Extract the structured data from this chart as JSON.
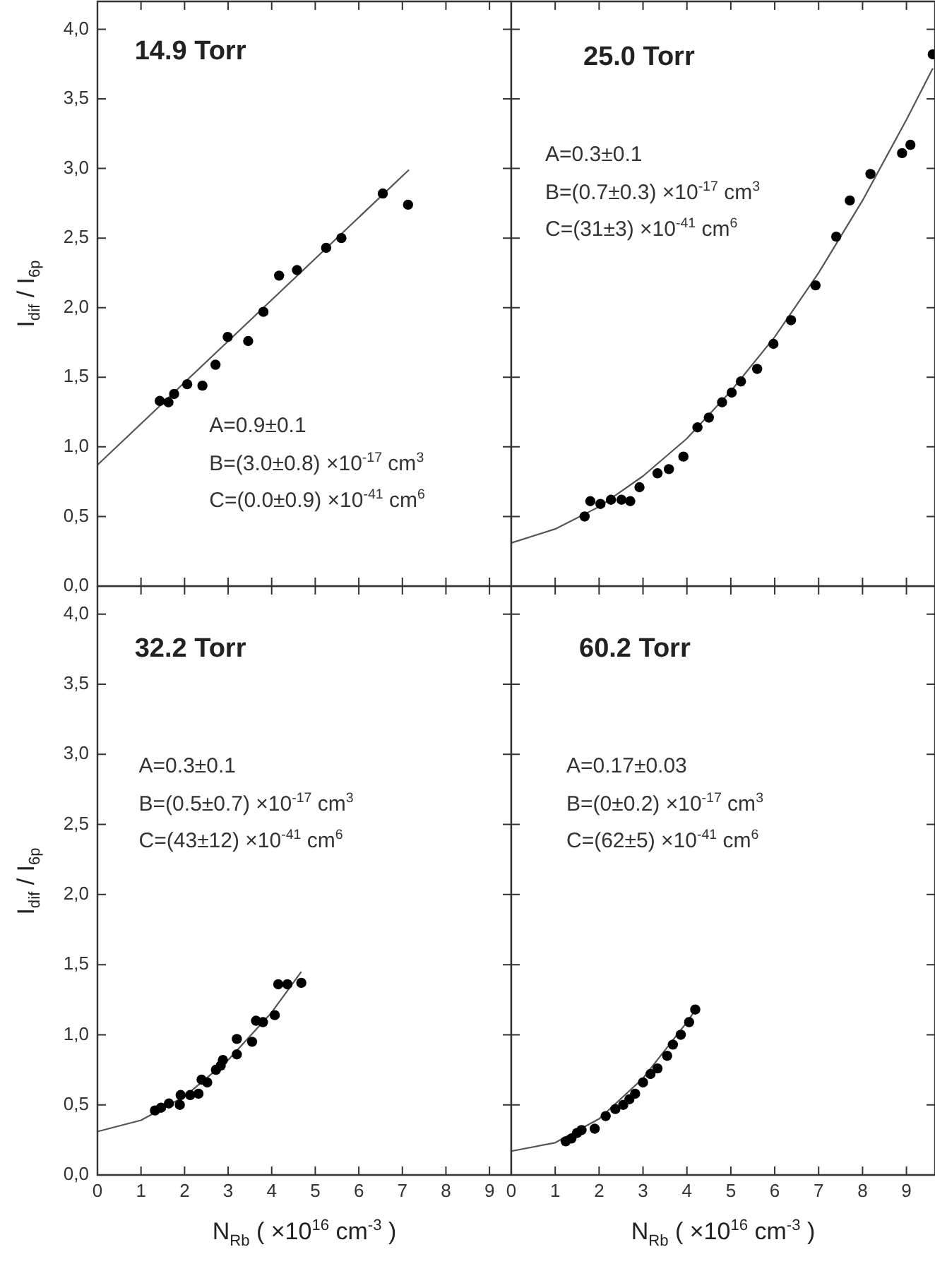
{
  "chart_data": [
    {
      "type": "scatter",
      "ylabel": "I$_{dif}$ / I$_{6p}$",
      "annotations": [
        "14.9 Torr",
        "A=0.9±0.1",
        "B=(3.0±0.8) ×10$^{-17}$ cm$^{3}$",
        "C=(0.0±0.9) ×10$^{-41}$ cm$^{6}$"
      ],
      "xlim": [
        0,
        9.5
      ],
      "xticks": [
        {
          "value": 0,
          "label": null
        },
        {
          "value": 1,
          "label": null
        },
        {
          "value": 2,
          "label": null
        },
        {
          "value": 3,
          "label": null
        },
        {
          "value": 4,
          "label": null
        },
        {
          "value": 5,
          "label": null
        },
        {
          "value": 6,
          "label": null
        },
        {
          "value": 7,
          "label": null
        },
        {
          "value": 8,
          "label": null
        },
        {
          "value": 9,
          "label": null
        }
      ],
      "ylim": [
        0,
        4.2
      ],
      "yticks": [
        {
          "value": 0,
          "label": "0,0"
        },
        {
          "value": 0.5,
          "label": "0,5"
        },
        {
          "value": 1,
          "label": "1,0"
        },
        {
          "value": 1.5,
          "label": "1,5"
        },
        {
          "value": 2,
          "label": "2,0"
        },
        {
          "value": 2.5,
          "label": "2,5"
        },
        {
          "value": 3,
          "label": "3,0"
        },
        {
          "value": 3.5,
          "label": "3,5"
        },
        {
          "value": 4,
          "label": "4,0"
        }
      ],
      "tick_labels": "y",
      "marker": "circle",
      "series": [
        {
          "type": "scatter",
          "color": "#000000",
          "x": [
            1.43,
            1.63,
            1.76,
            2.06,
            2.41,
            2.71,
            2.99,
            3.46,
            3.81,
            4.17,
            4.58,
            5.25,
            5.6,
            6.55,
            7.13
          ],
          "values": [
            1.33,
            1.32,
            1.38,
            1.45,
            1.44,
            1.59,
            1.79,
            1.76,
            1.97,
            2.23,
            2.27,
            2.43,
            2.5,
            2.82,
            2.74
          ]
        },
        {
          "type": "line",
          "color": "#555555",
          "marker": "none",
          "x": [
            0,
            7.15
          ],
          "values": [
            0.87,
            2.99
          ]
        }
      ]
    },
    {
      "type": "scatter",
      "annotations": [
        "25.0 Torr",
        "A=0.3±0.1",
        "B=(0.7±0.3) ×10$^{-17}$ cm$^{3}$",
        "C=(31±3) ×10$^{-41}$ cm$^{6}$"
      ],
      "xlim": [
        0,
        9.65
      ],
      "xticks": [
        {
          "value": 0,
          "label": null
        },
        {
          "value": 1,
          "label": null
        },
        {
          "value": 2,
          "label": null
        },
        {
          "value": 3,
          "label": null
        },
        {
          "value": 4,
          "label": null
        },
        {
          "value": 5,
          "label": null
        },
        {
          "value": 6,
          "label": null
        },
        {
          "value": 7,
          "label": null
        },
        {
          "value": 8,
          "label": null
        },
        {
          "value": 9,
          "label": null
        }
      ],
      "ylim": [
        0,
        4.2
      ],
      "yticks": [
        {
          "value": 0,
          "label": null
        },
        {
          "value": 0.5,
          "label": null
        },
        {
          "value": 1,
          "label": null
        },
        {
          "value": 1.5,
          "label": null
        },
        {
          "value": 2,
          "label": null
        },
        {
          "value": 2.5,
          "label": null
        },
        {
          "value": 3,
          "label": null
        },
        {
          "value": 3.5,
          "label": null
        },
        {
          "value": 4,
          "label": null
        }
      ],
      "tick_labels": false,
      "marker": "circle",
      "series": [
        {
          "type": "scatter",
          "color": "#000000",
          "x": [
            1.67,
            1.8,
            2.03,
            2.27,
            2.51,
            2.71,
            2.92,
            3.33,
            3.59,
            3.92,
            4.24,
            4.5,
            4.8,
            5.02,
            5.23,
            5.6,
            5.97,
            6.37,
            6.93,
            7.4,
            7.71,
            8.18,
            8.9,
            9.09,
            9.6
          ],
          "values": [
            0.5,
            0.61,
            0.59,
            0.62,
            0.62,
            0.61,
            0.71,
            0.81,
            0.84,
            0.93,
            1.14,
            1.21,
            1.32,
            1.39,
            1.47,
            1.56,
            1.74,
            1.91,
            2.16,
            2.51,
            2.77,
            2.96,
            3.11,
            3.17,
            3.82
          ]
        },
        {
          "type": "line",
          "color": "#555555",
          "marker": "none",
          "x": [
            0,
            1,
            2,
            3,
            4,
            5,
            6,
            7,
            8,
            9,
            9.6
          ],
          "values": [
            0.31,
            0.41,
            0.57,
            0.79,
            1.06,
            1.4,
            1.79,
            2.25,
            2.77,
            3.35,
            3.72
          ]
        }
      ]
    },
    {
      "type": "scatter",
      "ylabel": "I$_{dif}$ / I$_{6p}$",
      "xlabel": "N$_{Rb}$ ( ×10$^{16}$ cm$^{-3}$ )",
      "annotations": [
        "32.2 Torr",
        "A=0.3±0.1",
        "B=(0.5±0.7) ×10$^{-17}$ cm$^{3}$",
        "C=(43±12) ×10$^{-41}$ cm$^{6}$"
      ],
      "xlim": [
        0,
        9.5
      ],
      "xticks": [
        0,
        1,
        2,
        3,
        4,
        5,
        6,
        7,
        8,
        9
      ],
      "ylim": [
        0,
        4.2
      ],
      "yticks": [
        {
          "value": 0,
          "label": "0,0"
        },
        {
          "value": 0.5,
          "label": "0,5"
        },
        {
          "value": 1,
          "label": "1,0"
        },
        {
          "value": 1.5,
          "label": "1,5"
        },
        {
          "value": 2,
          "label": "2,0"
        },
        {
          "value": 2.5,
          "label": "2,5"
        },
        {
          "value": 3,
          "label": "3,0"
        },
        {
          "value": 3.5,
          "label": "3,5"
        },
        {
          "value": 4,
          "label": "4,0"
        }
      ],
      "marker": "circle",
      "series": [
        {
          "type": "scatter",
          "color": "#000000",
          "x": [
            1.32,
            1.46,
            1.64,
            1.89,
            1.91,
            2.13,
            2.32,
            2.39,
            2.52,
            2.72,
            2.83,
            2.88,
            3.2,
            3.2,
            3.55,
            3.64,
            3.8,
            4.07,
            4.15,
            4.36,
            4.68
          ],
          "values": [
            0.46,
            0.48,
            0.51,
            0.5,
            0.57,
            0.57,
            0.58,
            0.68,
            0.66,
            0.75,
            0.78,
            0.82,
            0.86,
            0.97,
            0.95,
            1.1,
            1.09,
            1.14,
            1.36,
            1.36,
            1.37
          ]
        },
        {
          "type": "line",
          "color": "#555555",
          "marker": "none",
          "x": [
            0,
            1,
            2,
            3,
            4,
            4.68
          ],
          "values": [
            0.31,
            0.39,
            0.56,
            0.82,
            1.16,
            1.45
          ]
        }
      ]
    },
    {
      "type": "scatter",
      "xlabel": "N$_{Rb}$ ( ×10$^{16}$ cm$^{-3}$ )",
      "annotations": [
        "60.2 Torr",
        "A=0.17±0.03",
        "B=(0±0.2) ×10$^{-17}$ cm$^{3}$",
        "C=(62±5) ×10$^{-41}$ cm$^{6}$"
      ],
      "xlim": [
        0,
        9.65
      ],
      "xticks": [
        0,
        1,
        2,
        3,
        4,
        5,
        6,
        7,
        8,
        9
      ],
      "ylim": [
        0,
        4.2
      ],
      "yticks": [
        {
          "value": 0,
          "label": null
        },
        {
          "value": 0.5,
          "label": null
        },
        {
          "value": 1,
          "label": null
        },
        {
          "value": 1.5,
          "label": null
        },
        {
          "value": 2,
          "label": null
        },
        {
          "value": 2.5,
          "label": null
        },
        {
          "value": 3,
          "label": null
        },
        {
          "value": 3.5,
          "label": null
        },
        {
          "value": 4,
          "label": null
        }
      ],
      "tick_labels": "x",
      "marker": "circle",
      "series": [
        {
          "type": "scatter",
          "color": "#000000",
          "x": [
            1.24,
            1.37,
            1.5,
            1.6,
            1.9,
            2.15,
            2.37,
            2.55,
            2.69,
            2.82,
            3.0,
            3.17,
            3.33,
            3.55,
            3.68,
            3.86,
            4.05,
            4.19
          ],
          "values": [
            0.24,
            0.26,
            0.3,
            0.32,
            0.33,
            0.42,
            0.47,
            0.5,
            0.54,
            0.58,
            0.66,
            0.72,
            0.76,
            0.85,
            0.93,
            1.0,
            1.09,
            1.18
          ]
        },
        {
          "type": "line",
          "color": "#555555",
          "marker": "none",
          "x": [
            0,
            1,
            2,
            3,
            4,
            4.2
          ],
          "values": [
            0.17,
            0.23,
            0.4,
            0.69,
            1.09,
            1.18
          ]
        }
      ]
    }
  ]
}
